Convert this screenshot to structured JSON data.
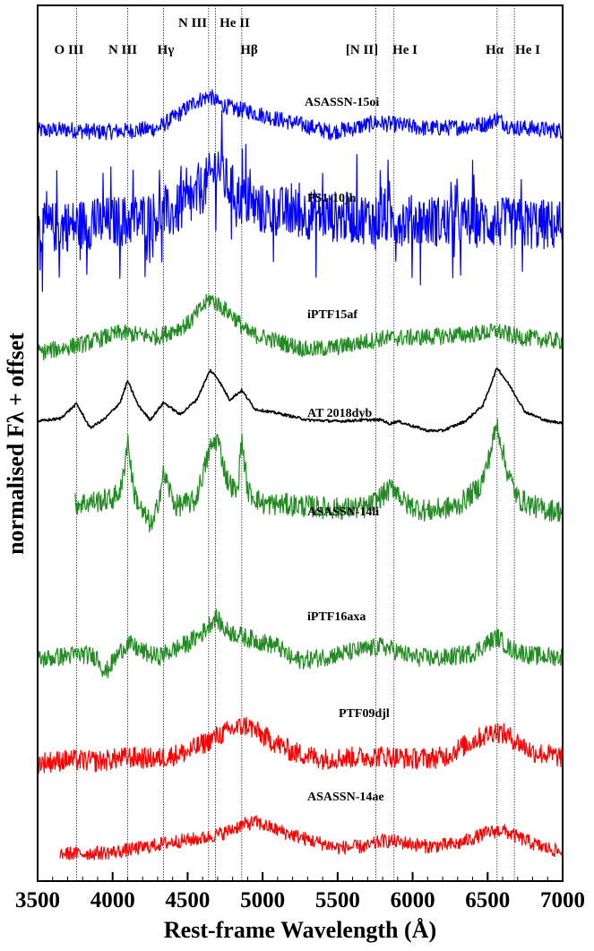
{
  "chart_data": {
    "type": "line",
    "xlabel": "Rest-frame Wavelength (Å)",
    "ylabel": "normalised Fλ + offset",
    "xlim": [
      3500,
      7000
    ],
    "xticks": [
      "3500",
      "4000",
      "4500",
      "5000",
      "5500",
      "6000",
      "6500",
      "7000"
    ],
    "yticks": [],
    "grid": false,
    "legend": "none",
    "colors": {
      "blue": "#0000ff",
      "green": "#228b22",
      "black": "#000000",
      "red": "#ff0000"
    },
    "line_markers": [
      {
        "label": "O III",
        "x": 3760
      },
      {
        "label": "N III",
        "x": 4100
      },
      {
        "label": "Hγ",
        "x": 4340
      },
      {
        "label": "N III",
        "x": 4640
      },
      {
        "label": "He II",
        "x": 4686
      },
      {
        "label": "Hβ",
        "x": 4861
      },
      {
        "label": "[N II]",
        "x": 5755
      },
      {
        "label": "He I",
        "x": 5876
      },
      {
        "label": "Hα",
        "x": 6563
      },
      {
        "label": "He I",
        "x": 6678
      }
    ],
    "series": [
      {
        "name": "ASASSN-15oi",
        "color": "#0000ff",
        "noise": 0.35,
        "x": [
          3500,
          3700,
          3900,
          4100,
          4300,
          4450,
          4550,
          4650,
          4700,
          4800,
          4900,
          5100,
          5300,
          5450,
          5600,
          5750,
          5900,
          6100,
          6300,
          6500,
          6563,
          6650,
          6800,
          7000
        ],
        "y": [
          0.35,
          0.4,
          0.3,
          0.35,
          0.45,
          1.1,
          1.6,
          1.85,
          1.55,
          1.3,
          1.2,
          0.85,
          0.55,
          0.3,
          0.45,
          0.7,
          0.6,
          0.45,
          0.5,
          0.65,
          0.9,
          0.5,
          0.45,
          0.35
        ]
      },
      {
        "name": "PS1-10jh",
        "color": "#0000ff",
        "noise": 0.9,
        "x": [
          3500,
          3800,
          4100,
          4400,
          4550,
          4650,
          4700,
          4750,
          4850,
          5000,
          5500,
          6000,
          6500,
          7000
        ],
        "y": [
          0.35,
          0.5,
          0.6,
          0.8,
          1.2,
          1.8,
          2.2,
          1.7,
          1.2,
          0.9,
          0.7,
          0.6,
          0.55,
          0.45
        ]
      },
      {
        "name": "iPTF15af",
        "color": "#228b22",
        "noise": 0.3,
        "x": [
          3500,
          3800,
          4050,
          4300,
          4500,
          4650,
          4700,
          4800,
          4900,
          5100,
          5300,
          5500,
          5800,
          6100,
          6400,
          6563,
          6700,
          7000
        ],
        "y": [
          0.2,
          0.5,
          0.9,
          0.75,
          1.2,
          2.1,
          1.9,
          1.5,
          0.9,
          0.6,
          0.3,
          0.4,
          0.7,
          0.75,
          0.85,
          0.95,
          0.75,
          0.6
        ]
      },
      {
        "name": "AT 2018dyb",
        "color": "#000000",
        "noise": 0.05,
        "x": [
          3500,
          3650,
          3760,
          3850,
          3950,
          4050,
          4100,
          4170,
          4250,
          4340,
          4450,
          4560,
          4650,
          4700,
          4780,
          4861,
          4950,
          5100,
          5300,
          5500,
          5700,
          5800,
          5840,
          5900,
          6100,
          6200,
          6350,
          6470,
          6563,
          6650,
          6750,
          6900,
          7000
        ],
        "y": [
          0.5,
          0.6,
          1.15,
          0.25,
          0.6,
          1.2,
          2.0,
          1.1,
          0.55,
          1.2,
          0.75,
          1.3,
          2.4,
          2.1,
          1.3,
          1.65,
          0.95,
          0.8,
          0.55,
          0.5,
          0.55,
          0.55,
          0.4,
          0.5,
          0.15,
          0.15,
          0.5,
          1.1,
          2.5,
          1.8,
          0.85,
          0.5,
          0.45
        ]
      },
      {
        "name": "ASASSN-14li",
        "color": "#228b22",
        "noise": 0.45,
        "x": [
          3750,
          3900,
          4000,
          4060,
          4100,
          4140,
          4200,
          4270,
          4340,
          4420,
          4550,
          4650,
          4700,
          4760,
          4830,
          4861,
          4900,
          5000,
          5200,
          5500,
          5700,
          5876,
          5950,
          6100,
          6300,
          6450,
          6500,
          6563,
          6620,
          6700,
          6850,
          7000
        ],
        "y": [
          1.0,
          1.1,
          1.2,
          1.6,
          3.6,
          1.5,
          0.6,
          0.1,
          2.2,
          0.9,
          1.1,
          3.2,
          3.6,
          2.0,
          1.4,
          3.6,
          1.5,
          1.0,
          0.95,
          0.8,
          0.85,
          1.7,
          1.0,
          0.7,
          0.9,
          1.7,
          2.6,
          4.2,
          2.5,
          1.2,
          0.8,
          0.7
        ]
      },
      {
        "name": "iPTF16axa",
        "color": "#228b22",
        "noise": 0.35,
        "x": [
          3500,
          3700,
          3800,
          3900,
          3950,
          4050,
          4100,
          4200,
          4300,
          4500,
          4600,
          4686,
          4750,
          4900,
          5100,
          5200,
          5300,
          5500,
          5700,
          5800,
          6000,
          6200,
          6400,
          6563,
          6650,
          6800,
          7000
        ],
        "y": [
          0.3,
          0.45,
          0.5,
          0.4,
          -0.2,
          0.6,
          0.9,
          0.6,
          0.4,
          0.9,
          1.3,
          1.9,
          1.4,
          1.1,
          0.8,
          0.3,
          0.3,
          0.5,
          0.7,
          0.8,
          0.4,
          0.35,
          0.55,
          1.15,
          0.7,
          0.45,
          0.4
        ]
      },
      {
        "name": "PTF09djl",
        "color": "#ff0000",
        "noise": 0.4,
        "x": [
          3500,
          3700,
          3900,
          4100,
          4300,
          4500,
          4700,
          4800,
          4900,
          5000,
          5200,
          5400,
          5600,
          5800,
          6000,
          6200,
          6400,
          6550,
          6650,
          6800,
          7000
        ],
        "y": [
          0.3,
          0.4,
          0.35,
          0.5,
          0.45,
          0.7,
          1.3,
          1.55,
          1.7,
          1.3,
          0.7,
          0.45,
          0.5,
          0.55,
          0.45,
          0.5,
          1.1,
          1.5,
          1.25,
          0.7,
          0.5
        ]
      },
      {
        "name": "ASASSN-14ae",
        "color": "#ff0000",
        "noise": 0.3,
        "x": [
          3650,
          3800,
          4000,
          4200,
          4400,
          4600,
          4750,
          4850,
          4950,
          5100,
          5300,
          5500,
          5700,
          5800,
          5900,
          6100,
          6300,
          6500,
          6600,
          6700,
          6850,
          7000
        ],
        "y": [
          0.3,
          0.3,
          0.35,
          0.55,
          0.8,
          0.95,
          1.2,
          1.5,
          1.65,
          1.3,
          0.9,
          0.55,
          0.6,
          0.85,
          0.8,
          0.6,
          0.7,
          1.2,
          1.3,
          1.0,
          0.6,
          0.35
        ]
      }
    ]
  }
}
